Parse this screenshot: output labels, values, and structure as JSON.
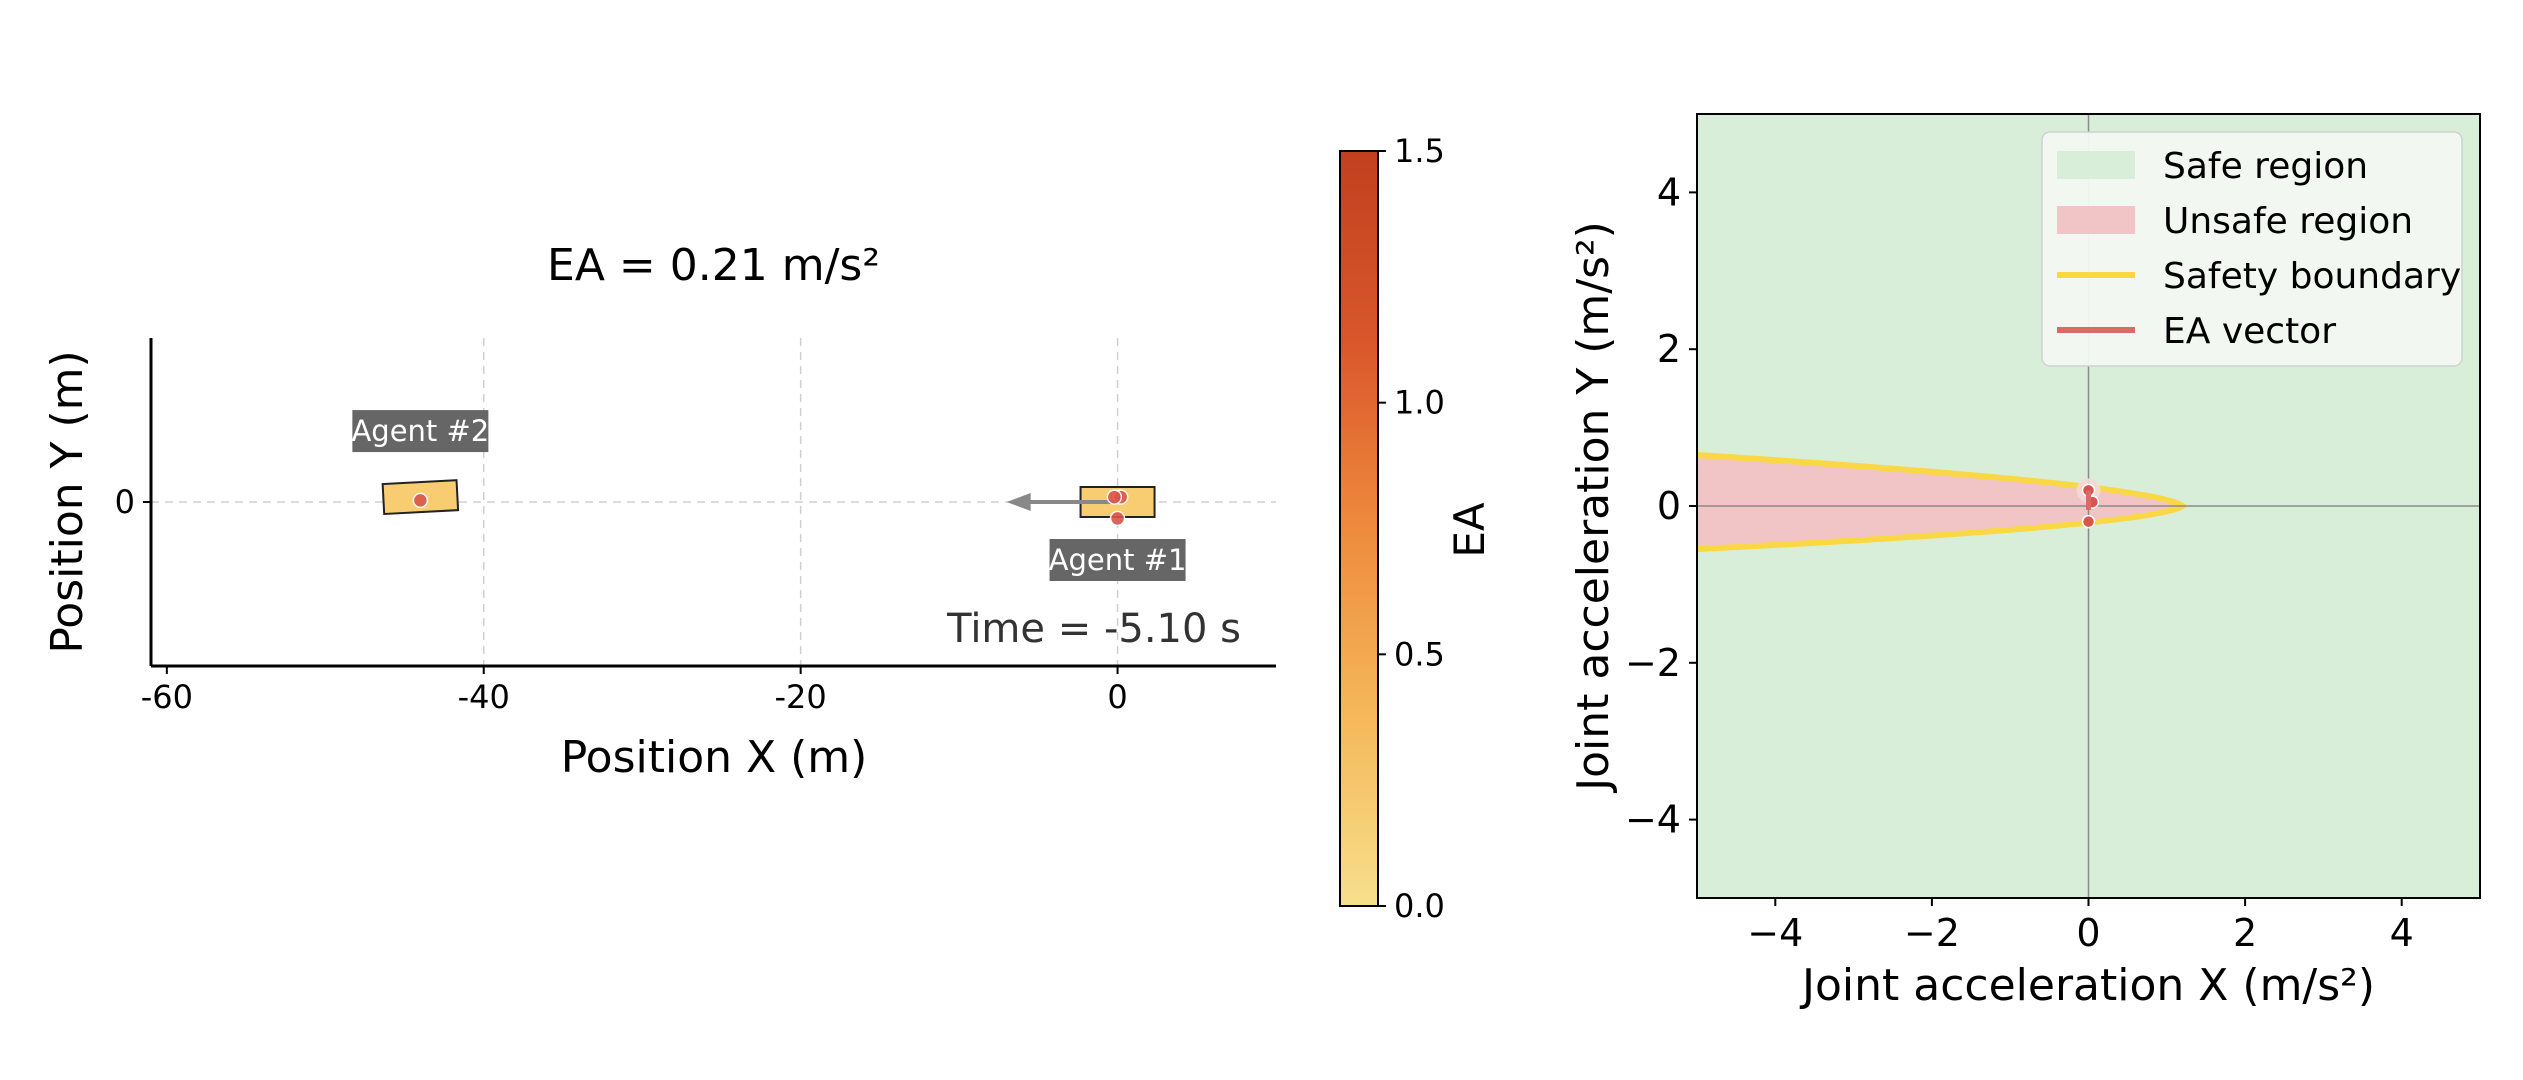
{
  "colors": {
    "vehicle_fill": "#f8cd72",
    "ea_point": "#d9544c",
    "arrow": "#888888",
    "safe_fill": "#d9eed8",
    "unsafe_fill": "#f1c4c6",
    "boundary": "#fad744",
    "ea_vector": "#d96a66",
    "agent_label_bg": "#666666",
    "colormap": [
      "#f6e08c",
      "#f5b85a",
      "#ee8b3d",
      "#d9562b",
      "#c2401e"
    ]
  },
  "chart_data": [
    {
      "type": "scatter",
      "title": "EA = 0.21 m/s²",
      "xlabel": "Position X (m)",
      "ylabel": "Position Y (m)",
      "xlim": [
        -61,
        10
      ],
      "ylim": [
        -10,
        10
      ],
      "xticks": [
        -60,
        -40,
        -20,
        0
      ],
      "xtick_labels": [
        "-60",
        "-40",
        "-20",
        "0"
      ],
      "yticks": [
        0
      ],
      "ytick_labels": [
        "0"
      ],
      "grid": true,
      "time_label": "Time = -5.10 s",
      "agents": [
        {
          "label": "Agent #1",
          "x": 0,
          "y": 0,
          "heading_deg": 0
        },
        {
          "label": "Agent #2",
          "x": -44,
          "y": 0.3,
          "heading_deg": -3
        }
      ],
      "velocity_arrow": {
        "from": [
          0,
          0
        ],
        "to": [
          -7,
          0
        ]
      },
      "ea_points": [
        {
          "x": 0.2,
          "y": 0.3
        },
        {
          "x": -0.2,
          "y": 0.3
        },
        {
          "x": 0,
          "y": -1
        },
        {
          "x": -44,
          "y": 0.1
        }
      ],
      "colorbar": {
        "label": "EA",
        "range": [
          0.0,
          1.5
        ],
        "ticks": [
          0.0,
          0.5,
          1.0,
          1.5
        ],
        "tick_labels": [
          "0.0",
          "0.5",
          "1.0",
          "1.5"
        ]
      }
    },
    {
      "type": "area",
      "xlabel": "Joint acceleration X (m/s²)",
      "ylabel": "Joint acceleration Y (m/s²)",
      "xlim": [
        -5,
        5
      ],
      "ylim": [
        -5,
        5
      ],
      "xticks": [
        -4,
        -2,
        0,
        2,
        4
      ],
      "xtick_labels": [
        "−4",
        "−2",
        "0",
        "2",
        "4"
      ],
      "yticks": [
        -4,
        -2,
        0,
        2,
        4
      ],
      "ytick_labels": [
        "−4",
        "−2",
        "0",
        "2",
        "4"
      ],
      "legend_position": "top-right",
      "legend": [
        {
          "label": "Safe region",
          "kind": "patch",
          "color": "#d9eed8"
        },
        {
          "label": "Unsafe region",
          "kind": "patch",
          "color": "#f1c4c6"
        },
        {
          "label": "Safety boundary",
          "kind": "line",
          "color": "#fad744"
        },
        {
          "label": "EA vector",
          "kind": "line",
          "color": "#d96a66"
        }
      ],
      "boundary": {
        "tip_x": 1.2,
        "left_x": -5,
        "left_y_top": 0.65,
        "left_y_bottom": -0.55
      },
      "ea_points": [
        {
          "x": 0,
          "y": 0.2
        },
        {
          "x": 0.05,
          "y": 0.05
        },
        {
          "x": 0,
          "y": -0.2
        }
      ]
    }
  ]
}
